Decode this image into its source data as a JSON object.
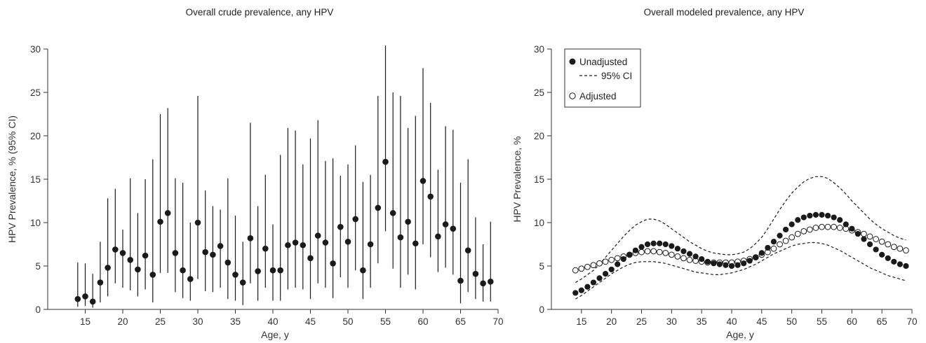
{
  "chart_data": [
    {
      "type": "scatter",
      "title": "Overall crude prevalence, any HPV",
      "xlabel": "Age, y",
      "ylabel": "HPV Prevalence, % (95% CI)",
      "xlim": [
        10,
        70
      ],
      "ylim": [
        0,
        30
      ],
      "xticks": [
        15,
        20,
        25,
        30,
        35,
        40,
        45,
        50,
        55,
        60,
        65,
        70
      ],
      "yticks": [
        0,
        5,
        10,
        15,
        20,
        25,
        30
      ],
      "series": [
        {
          "x": [
            14,
            15,
            16,
            17,
            18,
            19,
            20,
            21,
            22,
            23,
            24,
            25,
            26,
            27,
            28,
            29,
            30,
            31,
            32,
            33,
            34,
            35,
            36,
            37,
            38,
            39,
            40,
            41,
            42,
            43,
            44,
            45,
            46,
            47,
            48,
            49,
            50,
            51,
            52,
            53,
            54,
            55,
            56,
            57,
            58,
            59,
            60,
            61,
            62,
            63,
            64,
            65,
            66,
            67,
            68,
            69
          ],
          "y": [
            1.2,
            1.5,
            0.9,
            3.1,
            4.8,
            6.9,
            6.5,
            5.7,
            4.6,
            6.2,
            4.0,
            10.1,
            11.1,
            6.5,
            4.5,
            3.5,
            10.0,
            6.6,
            6.3,
            7.3,
            5.4,
            4.0,
            3.1,
            8.2,
            4.4,
            7.0,
            4.5,
            4.5,
            7.4,
            7.7,
            7.4,
            5.9,
            8.5,
            7.7,
            5.3,
            9.5,
            7.8,
            10.4,
            4.5,
            7.5,
            11.7,
            17.0,
            11.1,
            8.3,
            10.1,
            7.6,
            14.8,
            13.0,
            8.4,
            9.8,
            9.3,
            3.3,
            6.8,
            4.1,
            3.0,
            3.2
          ],
          "ci_low": [
            0.3,
            0.4,
            0.2,
            0.8,
            1.5,
            3.0,
            2.5,
            2.2,
            1.5,
            2.3,
            0.8,
            4.2,
            4.2,
            2.0,
            1.3,
            1.0,
            3.5,
            2.1,
            2.0,
            2.5,
            1.2,
            1.0,
            0.5,
            3.0,
            1.0,
            2.5,
            1.0,
            1.0,
            2.3,
            2.5,
            2.3,
            1.2,
            3.0,
            2.5,
            1.3,
            3.7,
            2.5,
            4.5,
            1.2,
            2.5,
            5.3,
            9.0,
            4.7,
            2.5,
            4.0,
            2.3,
            7.5,
            6.0,
            4.3,
            4.8,
            4.0,
            0.7,
            2.0,
            1.2,
            0.9,
            0.9
          ],
          "ci_high": [
            5.4,
            5.3,
            4.1,
            7.8,
            12.8,
            13.9,
            9.2,
            15.1,
            11.1,
            15.0,
            17.3,
            22.5,
            23.2,
            15.1,
            14.6,
            10.0,
            24.6,
            13.7,
            11.9,
            11.5,
            15.1,
            10.8,
            7.8,
            21.5,
            11.9,
            15.5,
            9.8,
            17.8,
            20.9,
            20.6,
            16.7,
            19.7,
            21.8,
            17.1,
            17.4,
            15.4,
            16.7,
            18.9,
            14.7,
            15.5,
            24.6,
            30.4,
            25.0,
            24.6,
            20.9,
            22.3,
            27.8,
            23.8,
            16.1,
            21.1,
            20.7,
            14.6,
            17.3,
            10.6,
            7.5,
            10.1
          ],
          "marker": "filled-circle",
          "color": "#1a1a1a"
        }
      ]
    },
    {
      "type": "line",
      "title": "Overall modeled prevalence, any HPV",
      "xlabel": "Age, y",
      "ylabel": "HPV Prevalence, %",
      "xlim": [
        10,
        70
      ],
      "ylim": [
        0,
        30
      ],
      "xticks": [
        15,
        20,
        25,
        30,
        35,
        40,
        45,
        50,
        55,
        60,
        65,
        70
      ],
      "yticks": [
        0,
        5,
        10,
        15,
        20,
        25,
        30
      ],
      "legend_position": "top-left",
      "legend": {
        "unadjusted": "Unadjusted",
        "ci": "95% CI",
        "adjusted": "Adjusted"
      },
      "x": [
        14,
        15,
        16,
        17,
        18,
        19,
        20,
        21,
        22,
        23,
        24,
        25,
        26,
        27,
        28,
        29,
        30,
        31,
        32,
        33,
        34,
        35,
        36,
        37,
        38,
        39,
        40,
        41,
        42,
        43,
        44,
        45,
        46,
        47,
        48,
        49,
        50,
        51,
        52,
        53,
        54,
        55,
        56,
        57,
        58,
        59,
        60,
        61,
        62,
        63,
        64,
        65,
        66,
        67,
        68,
        69
      ],
      "series": [
        {
          "name": "Unadjusted",
          "marker": "filled-circle",
          "color": "#1a1a1a",
          "values": [
            1.9,
            2.2,
            2.6,
            3.1,
            3.6,
            4.1,
            4.6,
            5.2,
            5.8,
            6.3,
            6.8,
            7.2,
            7.5,
            7.6,
            7.6,
            7.5,
            7.3,
            7.0,
            6.7,
            6.4,
            6.1,
            5.8,
            5.5,
            5.3,
            5.2,
            5.1,
            5.0,
            5.1,
            5.3,
            5.6,
            6.0,
            6.5,
            7.1,
            7.8,
            8.5,
            9.2,
            9.8,
            10.3,
            10.6,
            10.8,
            10.9,
            10.9,
            10.8,
            10.6,
            10.3,
            9.8,
            9.3,
            8.7,
            8.1,
            7.5,
            6.9,
            6.3,
            5.9,
            5.5,
            5.2,
            5.0
          ]
        },
        {
          "name": "Adjusted",
          "marker": "open-circle",
          "color": "#1a1a1a",
          "values": [
            4.5,
            4.7,
            4.9,
            5.1,
            5.3,
            5.5,
            5.7,
            5.9,
            6.1,
            6.3,
            6.5,
            6.6,
            6.7,
            6.7,
            6.6,
            6.5,
            6.3,
            6.1,
            5.9,
            5.7,
            5.6,
            5.5,
            5.4,
            5.4,
            5.4,
            5.4,
            5.4,
            5.5,
            5.6,
            5.8,
            6.0,
            6.3,
            6.6,
            7.0,
            7.5,
            7.9,
            8.3,
            8.7,
            9.0,
            9.2,
            9.4,
            9.5,
            9.5,
            9.5,
            9.4,
            9.3,
            9.1,
            8.9,
            8.7,
            8.4,
            8.1,
            7.8,
            7.5,
            7.2,
            7.0,
            6.8
          ]
        },
        {
          "name": "95% CI",
          "style": "dashed",
          "color": "#1a1a1a",
          "lower": [
            1.2,
            1.6,
            2.1,
            2.6,
            3.1,
            3.6,
            4.1,
            4.5,
            4.9,
            5.2,
            5.4,
            5.5,
            5.5,
            5.5,
            5.4,
            5.3,
            5.1,
            4.9,
            4.7,
            4.5,
            4.3,
            4.2,
            4.1,
            4.0,
            4.0,
            4.1,
            4.2,
            4.4,
            4.6,
            4.9,
            5.2,
            5.6,
            6.0,
            6.4,
            6.7,
            7.0,
            7.3,
            7.5,
            7.6,
            7.7,
            7.7,
            7.6,
            7.4,
            7.1,
            6.8,
            6.4,
            6.0,
            5.6,
            5.2,
            4.8,
            4.5,
            4.2,
            3.9,
            3.7,
            3.5,
            3.3
          ],
          "upper": [
            3.1,
            3.5,
            4.0,
            4.5,
            5.2,
            6.0,
            6.8,
            7.6,
            8.4,
            9.1,
            9.7,
            10.1,
            10.4,
            10.4,
            10.2,
            9.8,
            9.3,
            8.8,
            8.3,
            7.8,
            7.4,
            7.0,
            6.7,
            6.5,
            6.4,
            6.3,
            6.3,
            6.4,
            6.6,
            7.0,
            7.6,
            8.3,
            9.3,
            10.4,
            11.5,
            12.5,
            13.4,
            14.1,
            14.7,
            15.1,
            15.3,
            15.3,
            15.1,
            14.6,
            14.0,
            13.3,
            12.5,
            11.8,
            11.1,
            10.4,
            9.8,
            9.3,
            8.9,
            8.5,
            8.2,
            8.0
          ]
        }
      ]
    }
  ]
}
